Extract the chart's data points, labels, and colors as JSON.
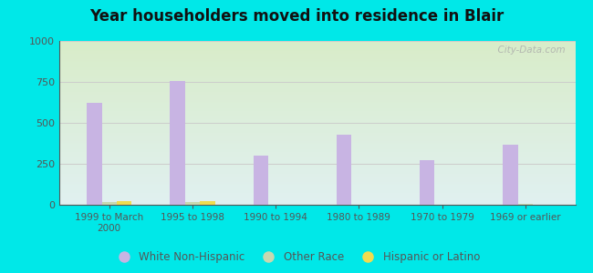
{
  "title": "Year householders moved into residence in Blair",
  "categories": [
    "1999 to March\n2000",
    "1995 to 1998",
    "1990 to 1994",
    "1980 to 1989",
    "1970 to 1979",
    "1969 or earlier"
  ],
  "white_non_hispanic": [
    625,
    755,
    300,
    430,
    275,
    365
  ],
  "other_race": [
    15,
    15,
    0,
    0,
    0,
    7
  ],
  "hispanic_or_latino": [
    20,
    25,
    0,
    0,
    0,
    0
  ],
  "bar_width": 0.18,
  "ylim": [
    0,
    1000
  ],
  "yticks": [
    0,
    250,
    500,
    750,
    1000
  ],
  "white_color": "#c8b4e3",
  "other_color": "#c8d8b0",
  "hispanic_color": "#f0dc50",
  "bg_outer": "#00e8e8",
  "bg_plot_top": "#e0f0f0",
  "bg_plot_bottom": "#d8ecc8",
  "title_color": "#111111",
  "tick_color": "#555555",
  "grid_color": "#cccccc",
  "watermark": "  City-Data.com"
}
